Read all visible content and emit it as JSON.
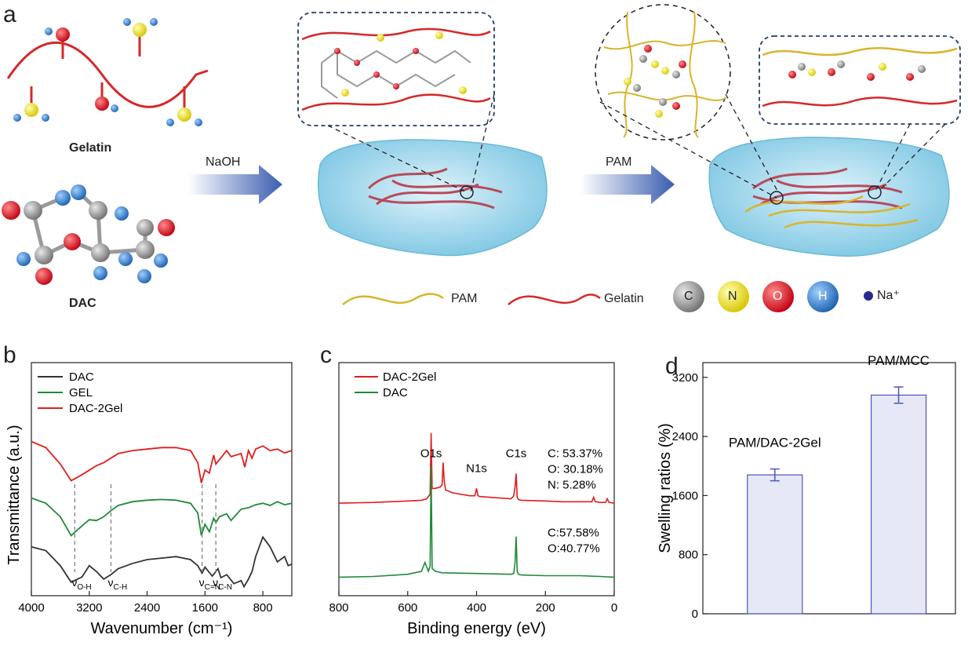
{
  "panel_letters": {
    "a": "a",
    "b": "b",
    "c": "c",
    "d": "d"
  },
  "schematic": {
    "molecule_gelatin": "Gelatin",
    "molecule_dac": "DAC",
    "step1_label": "NaOH",
    "step2_label": "PAM",
    "legend": {
      "pam": "PAM",
      "gelatin": "Gelatin",
      "atoms": [
        {
          "symbol": "C",
          "color": "#8e8e8e"
        },
        {
          "symbol": "N",
          "color": "#f2e21c"
        },
        {
          "symbol": "O",
          "color": "#e0141b"
        },
        {
          "symbol": "H",
          "color": "#2f86d6"
        }
      ],
      "na_label": "Na⁺"
    },
    "colors": {
      "pam": "#d9b42c",
      "gelatin": "#d62828",
      "gel_body": "#8fd0e6",
      "arrow": "#3a5db0"
    }
  },
  "chart_data": [
    {
      "type": "line",
      "panel": "b",
      "title": "",
      "xlabel": "Wavenumber (cm⁻¹)",
      "ylabel": "Transmittance (a.u.)",
      "xlim": [
        4000,
        400
      ],
      "x_reversed": true,
      "xticks": [
        "4000",
        "3200",
        "2400",
        "1600",
        "800"
      ],
      "xtick_values": [
        4000,
        3200,
        2400,
        1600,
        800
      ],
      "series": [
        {
          "name": "DAC",
          "color": "#333333",
          "offset": 0,
          "x": [
            4000,
            3800,
            3600,
            3450,
            3300,
            3200,
            3100,
            3000,
            2900,
            2800,
            2600,
            2400,
            2200,
            2000,
            1800,
            1700,
            1640,
            1600,
            1500,
            1420,
            1380,
            1300,
            1200,
            1100,
            1060,
            1000,
            950,
            900,
            800,
            700,
            600,
            500,
            450,
            400
          ],
          "y": [
            0.55,
            0.5,
            0.3,
            0.08,
            0.15,
            0.3,
            0.22,
            0.12,
            0.18,
            0.26,
            0.33,
            0.38,
            0.4,
            0.42,
            0.38,
            0.3,
            0.2,
            0.28,
            0.16,
            0.26,
            0.14,
            0.18,
            0.06,
            0.1,
            0.02,
            0.12,
            0.22,
            0.42,
            0.68,
            0.55,
            0.35,
            0.42,
            0.3,
            0.32
          ]
        },
        {
          "name": "GEL",
          "color": "#1f8a3a",
          "offset": 0.65,
          "x": [
            4000,
            3800,
            3600,
            3450,
            3300,
            3200,
            3100,
            3000,
            2900,
            2800,
            2600,
            2400,
            2200,
            2000,
            1800,
            1700,
            1650,
            1600,
            1540,
            1480,
            1450,
            1400,
            1300,
            1240,
            1100,
            1000,
            900,
            800,
            700,
            600,
            500,
            400
          ],
          "y": [
            0.55,
            0.48,
            0.3,
            0.05,
            0.18,
            0.26,
            0.25,
            0.3,
            0.38,
            0.45,
            0.5,
            0.52,
            0.53,
            0.52,
            0.48,
            0.35,
            0.05,
            0.2,
            0.1,
            0.28,
            0.22,
            0.3,
            0.34,
            0.25,
            0.4,
            0.42,
            0.46,
            0.48,
            0.45,
            0.5,
            0.46,
            0.48
          ]
        },
        {
          "name": "DAC-2Gel",
          "color": "#e11d1d",
          "offset": 1.35,
          "x": [
            4000,
            3800,
            3600,
            3450,
            3300,
            3100,
            3000,
            2900,
            2800,
            2600,
            2400,
            2200,
            2000,
            1800,
            1700,
            1650,
            1600,
            1540,
            1480,
            1450,
            1400,
            1300,
            1240,
            1100,
            1050,
            1000,
            950,
            900,
            800,
            700,
            600,
            500,
            400
          ],
          "y": [
            0.6,
            0.52,
            0.3,
            0.08,
            0.16,
            0.28,
            0.32,
            0.38,
            0.44,
            0.48,
            0.5,
            0.52,
            0.52,
            0.48,
            0.32,
            0.05,
            0.22,
            0.18,
            0.42,
            0.3,
            0.36,
            0.48,
            0.4,
            0.44,
            0.26,
            0.48,
            0.38,
            0.5,
            0.54,
            0.48,
            0.5,
            0.45,
            0.48
          ]
        }
      ],
      "annotations": [
        {
          "text": "νO-H",
          "main": "ν",
          "sub": "O-H",
          "x": 3400
        },
        {
          "text": "νC-H",
          "main": "ν",
          "sub": "C-H",
          "x": 2900
        },
        {
          "text": "νC=N",
          "main": "ν",
          "sub": "C=N",
          "x": 1640
        },
        {
          "text": "νC-N",
          "main": "ν",
          "sub": "C-N",
          "x": 1450
        }
      ],
      "legend": [
        "DAC",
        "GEL",
        "DAC-2Gel"
      ]
    },
    {
      "type": "line",
      "panel": "c",
      "title": "",
      "xlabel": "Binding energy (eV)",
      "ylabel": "",
      "xlim": [
        800,
        0
      ],
      "x_reversed": true,
      "xticks": [
        "800",
        "600",
        "400",
        "200",
        "0"
      ],
      "xtick_values": [
        800,
        600,
        400,
        200,
        0
      ],
      "series": [
        {
          "name": "DAC-2Gel",
          "color": "#e11d1d",
          "offset": 1.0,
          "x": [
            800,
            700,
            600,
            560,
            545,
            535,
            532,
            529,
            520,
            505,
            500,
            497,
            494,
            490,
            470,
            420,
            405,
            400,
            396,
            390,
            300,
            292,
            288,
            285,
            282,
            278,
            270,
            200,
            150,
            100,
            65,
            60,
            55,
            40,
            25,
            20,
            15,
            0
          ],
          "y": [
            0.0,
            0.01,
            0.03,
            0.04,
            0.06,
            0.12,
            0.95,
            0.2,
            0.2,
            0.22,
            0.25,
            0.55,
            0.3,
            0.18,
            0.14,
            0.1,
            0.1,
            0.2,
            0.1,
            0.09,
            0.06,
            0.1,
            0.22,
            0.4,
            0.08,
            0.05,
            0.04,
            0.03,
            0.02,
            0.02,
            0.02,
            0.08,
            0.02,
            0.01,
            0.01,
            0.06,
            0.01,
            0.0
          ]
        },
        {
          "name": "DAC",
          "color": "#1f8a3a",
          "offset": 0.0,
          "x": [
            800,
            700,
            600,
            560,
            550,
            540,
            535,
            532,
            529,
            520,
            500,
            400,
            300,
            292,
            288,
            285,
            282,
            278,
            270,
            200,
            150,
            100,
            40,
            0
          ],
          "y": [
            0.0,
            0.01,
            0.04,
            0.08,
            0.2,
            0.08,
            0.15,
            1.5,
            0.12,
            0.08,
            0.06,
            0.05,
            0.04,
            0.05,
            0.2,
            0.55,
            0.08,
            0.04,
            0.03,
            0.02,
            0.02,
            0.02,
            0.01,
            0.0
          ]
        }
      ],
      "peak_labels": [
        {
          "text": "O1s",
          "x": 532
        },
        {
          "text": "N1s",
          "x": 400
        },
        {
          "text": "C1s",
          "x": 285
        }
      ],
      "composition": {
        "DAC-2Gel": [
          "C: 53.37%",
          "O: 30.18%",
          "N: 5.28%"
        ],
        "DAC": [
          "C:57.58%",
          "O:40.77%"
        ]
      },
      "legend": [
        "DAC-2Gel",
        "DAC"
      ]
    },
    {
      "type": "bar",
      "panel": "d",
      "title": "",
      "xlabel": "",
      "ylabel": "Swelling ratios (%)",
      "ylim": [
        0,
        3400
      ],
      "yticks": [
        "0",
        "800",
        "1600",
        "2400",
        "3200"
      ],
      "ytick_values": [
        0,
        800,
        1600,
        2400,
        3200
      ],
      "categories": [
        "PAM/DAC-2Gel",
        "PAM/MCC"
      ],
      "values": [
        1880,
        2960
      ],
      "errors": [
        80,
        110
      ],
      "bar_color": "#e6e8f6",
      "bar_edge": "#4a56b8"
    }
  ]
}
